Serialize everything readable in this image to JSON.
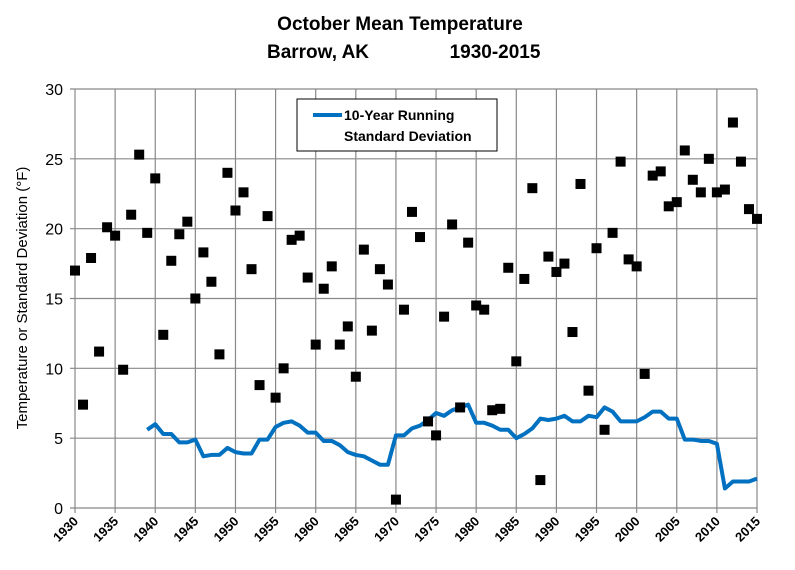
{
  "chart_data": {
    "type": "scatter+line",
    "title": "October Mean Temperature",
    "subtitle_location": "Barrow, AK",
    "subtitle_period": "1930-2015",
    "ylabel": "Temperature or Standard Deviation (°F)",
    "xlabel": "",
    "xlim": [
      1930,
      2015
    ],
    "ylim": [
      0,
      30
    ],
    "xticks": [
      "1930",
      "1935",
      "1940",
      "1945",
      "1950",
      "1955",
      "1960",
      "1965",
      "1970",
      "1975",
      "1980",
      "1985",
      "1990",
      "1995",
      "2000",
      "2005",
      "2010",
      "2015"
    ],
    "yticks": [
      "0",
      "5",
      "10",
      "15",
      "20",
      "25",
      "30"
    ],
    "grid": true,
    "legend_position": "top-center",
    "colors": {
      "line": "#0070C0",
      "points": "#000000",
      "grid": "#888888"
    },
    "points": {
      "x_start": 1930,
      "values": [
        17.0,
        7.4,
        17.9,
        11.2,
        20.1,
        19.5,
        9.9,
        21.0,
        25.3,
        19.7,
        23.6,
        12.4,
        17.7,
        19.6,
        20.5,
        15.0,
        18.3,
        16.2,
        11.0,
        24.0,
        21.3,
        22.6,
        17.1,
        8.8,
        20.9,
        7.9,
        10.0,
        19.2,
        19.5,
        16.5,
        11.7,
        15.7,
        17.3,
        11.7,
        13.0,
        9.4,
        18.5,
        12.7,
        17.1,
        16.0,
        0.6,
        14.2,
        21.2,
        19.4,
        6.2,
        5.2,
        13.7,
        20.3,
        7.2,
        19.0,
        14.5,
        14.2,
        7.0,
        7.1,
        17.2,
        10.5,
        16.4,
        22.9,
        2.0,
        18.0,
        16.9,
        17.5,
        12.6,
        23.2,
        8.4,
        18.6,
        5.6,
        19.7,
        24.8,
        17.8,
        17.3,
        9.6,
        23.8,
        24.1,
        21.6,
        21.9,
        25.6,
        23.5,
        22.6,
        25.0,
        22.6,
        22.8,
        27.6,
        24.8,
        21.4,
        20.7
      ]
    },
    "series": [
      {
        "name": "10-Year Running Standard Deviation",
        "x_start": 1939,
        "values": [
          5.6,
          6.0,
          5.3,
          5.3,
          4.7,
          4.7,
          4.9,
          3.7,
          3.8,
          3.8,
          4.3,
          4.0,
          3.9,
          3.9,
          4.9,
          4.9,
          5.8,
          6.1,
          6.2,
          5.9,
          5.4,
          5.4,
          4.8,
          4.8,
          4.5,
          4.0,
          3.8,
          3.7,
          3.4,
          3.1,
          3.1,
          5.2,
          5.2,
          5.7,
          5.9,
          6.3,
          6.8,
          6.6,
          7.0,
          7.2,
          7.4,
          6.1,
          6.1,
          5.9,
          5.6,
          5.6,
          5.0,
          5.3,
          5.7,
          6.4,
          6.3,
          6.4,
          6.6,
          6.2,
          6.2,
          6.6,
          6.5,
          7.2,
          6.9,
          6.2,
          6.2,
          6.2,
          6.5,
          6.9,
          6.9,
          6.4,
          6.4,
          4.9,
          4.9,
          4.8,
          4.8,
          4.6,
          1.4,
          1.9,
          1.9,
          1.9,
          2.1
        ]
      }
    ],
    "legend": {
      "line1": "10-Year Running",
      "line2": "Standard Deviation"
    }
  }
}
